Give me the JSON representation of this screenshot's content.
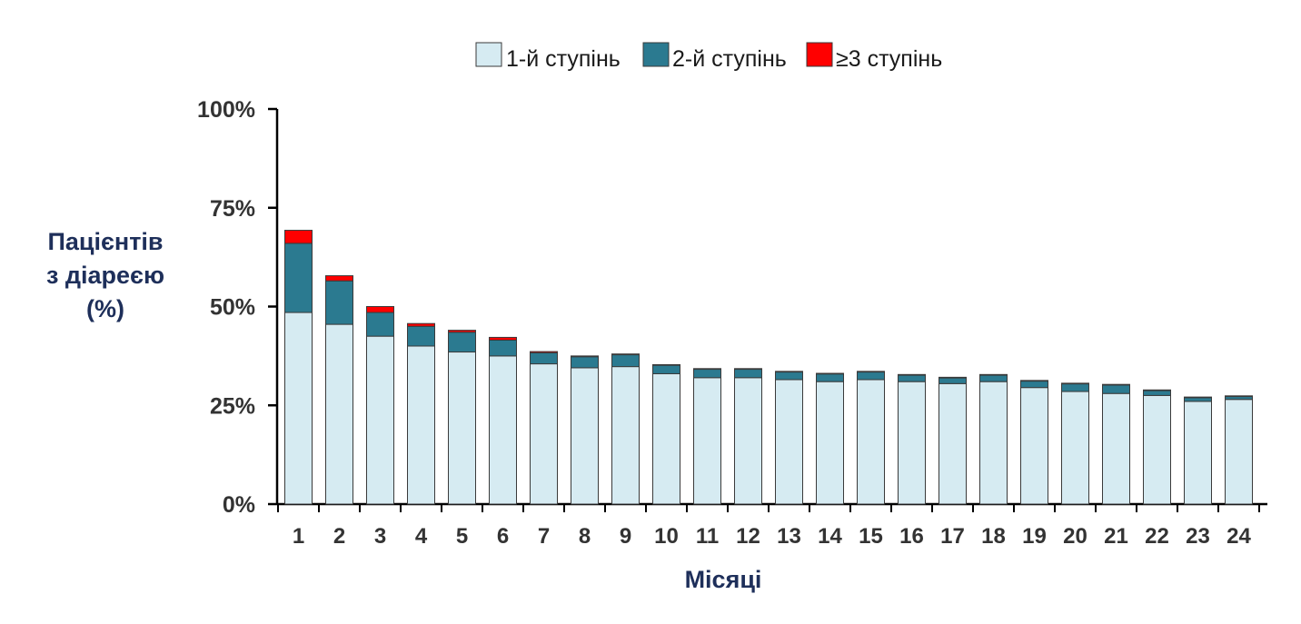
{
  "chart_data": {
    "type": "bar",
    "stacked": true,
    "categories": [
      "1",
      "2",
      "3",
      "4",
      "5",
      "6",
      "7",
      "8",
      "9",
      "10",
      "11",
      "12",
      "13",
      "14",
      "15",
      "16",
      "17",
      "18",
      "19",
      "20",
      "21",
      "22",
      "23",
      "24"
    ],
    "series": [
      {
        "name": "1-й ступінь",
        "color": "#d6ebf2",
        "values": [
          48.5,
          45.5,
          42.5,
          40,
          38.5,
          37.5,
          35.5,
          34.5,
          34.8,
          33,
          32,
          32,
          31.5,
          31,
          31.5,
          31,
          30.5,
          31,
          29.5,
          28.5,
          28,
          27.5,
          26,
          26.5
        ]
      },
      {
        "name": "2-й ступінь",
        "color": "#2b7a90",
        "values": [
          17.5,
          11,
          6,
          5,
          5,
          4,
          2.8,
          2.8,
          3,
          2.2,
          2.2,
          2.2,
          2,
          2,
          2,
          1.7,
          1.5,
          1.7,
          1.7,
          2,
          2.2,
          1.3,
          1,
          0.8
        ]
      },
      {
        "name": "≥3 ступінь",
        "color": "#ff0000",
        "values": [
          3.3,
          1.3,
          1.5,
          0.7,
          0.5,
          0.7,
          0.3,
          0.2,
          0.2,
          0.1,
          0.1,
          0.1,
          0.1,
          0.1,
          0.1,
          0.1,
          0.1,
          0.1,
          0.1,
          0.1,
          0.1,
          0.1,
          0.1,
          0.1
        ]
      }
    ],
    "ylabel": [
      "Пацієнтів",
      "з діареєю",
      "(%)"
    ],
    "xlabel": "Місяці",
    "yticks": [
      "0%",
      "25%",
      "50%",
      "75%",
      "100%"
    ],
    "ylim": [
      0,
      100
    ],
    "grid": false,
    "legend_position": "top"
  },
  "colors": {
    "axis": "#000000",
    "text": "#333333",
    "axis_title": "#1e2f5a",
    "bar_border": "#3a3a3a"
  }
}
